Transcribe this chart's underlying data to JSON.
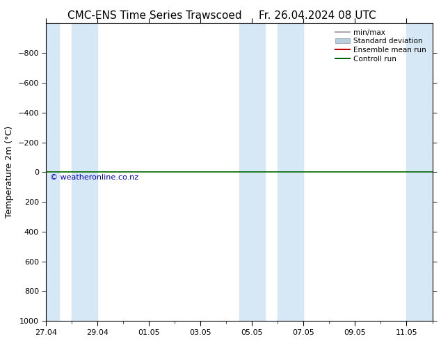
{
  "title_left": "CMC-ENS Time Series Trawscoed",
  "title_right": "Fr. 26.04.2024 08 UTC",
  "ylabel": "Temperature 2m (°C)",
  "ylabel_fontsize": 9,
  "title_fontsize": 11,
  "background_color": "#ffffff",
  "plot_bg_color": "#ffffff",
  "ylim_bottom": 1000,
  "ylim_top": -1000,
  "yticks": [
    -800,
    -600,
    -400,
    -200,
    0,
    200,
    400,
    600,
    800,
    1000
  ],
  "x_tick_labels": [
    "27.04",
    "29.04",
    "01.05",
    "03.05",
    "05.05",
    "07.05",
    "09.05",
    "11.05"
  ],
  "x_tick_positions": [
    0,
    2,
    4,
    6,
    8,
    10,
    12,
    14
  ],
  "xlim": [
    0,
    15
  ],
  "shaded_band_x_pairs": [
    [
      0,
      0.5
    ],
    [
      1,
      2
    ],
    [
      7.5,
      8.5
    ],
    [
      9,
      10
    ],
    [
      14,
      15
    ]
  ],
  "shaded_color": "#d6e8f5",
  "control_run_y": 0.0,
  "control_run_color": "#006600",
  "control_run_lw": 1.2,
  "ensemble_mean_color": "#cc0000",
  "min_max_color": "#aaaaaa",
  "std_dev_color": "#b8cfe0",
  "watermark": "© weatheronline.co.nz",
  "watermark_color": "#0000bb",
  "watermark_fontsize": 8,
  "legend_labels": [
    "min/max",
    "Standard deviation",
    "Ensemble mean run",
    "Controll run"
  ],
  "legend_colors": [
    "#aaaaaa",
    "#b8cfe0",
    "#cc0000",
    "#006600"
  ],
  "x_num_points": 15,
  "tick_fontsize": 8,
  "spine_color": "#000000"
}
